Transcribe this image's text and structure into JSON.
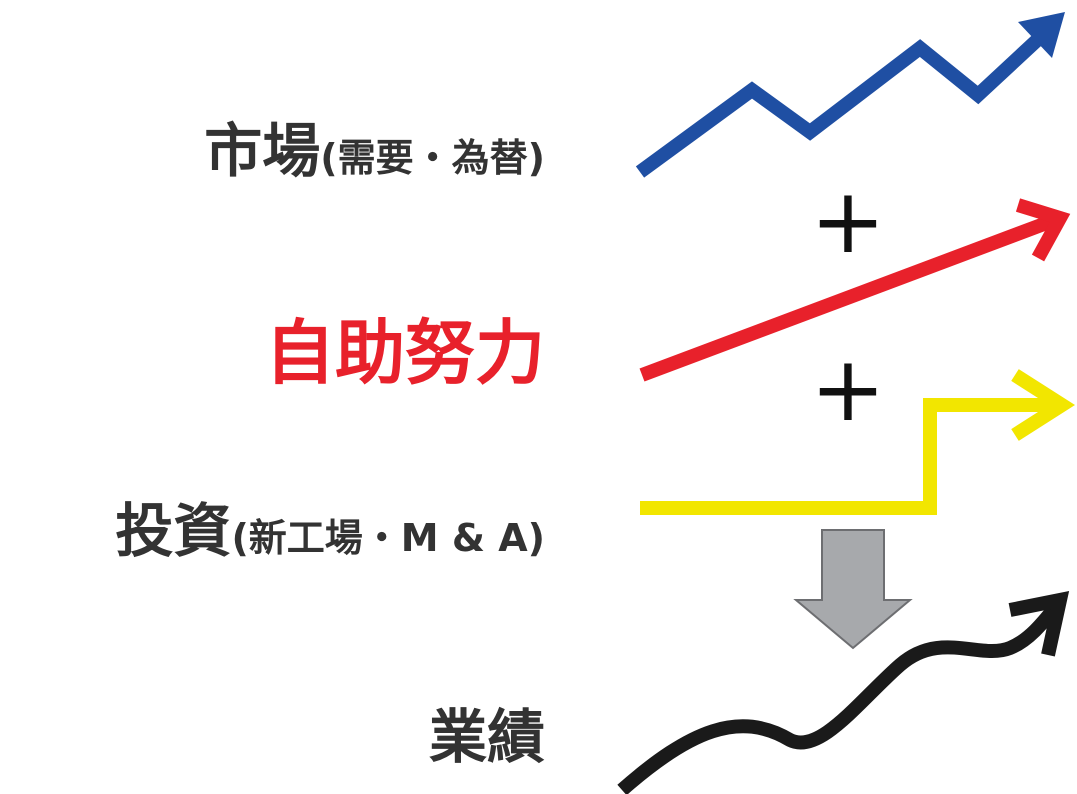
{
  "labels": {
    "market": {
      "main": "市場",
      "sub": "(需要・為替)"
    },
    "effort": {
      "main": "自助努力"
    },
    "invest": {
      "main": "投資",
      "sub": "(新工場・M & A)"
    },
    "result": {
      "main": "業績"
    }
  },
  "operators": {
    "plus1": "+",
    "plus2": "+"
  },
  "colors": {
    "market": "#1f4fa3",
    "effort": "#e8212b",
    "invest": "#f2e600",
    "result": "#1a1a1a",
    "down_arrow": "#a7a9ac",
    "text": "#333333"
  }
}
